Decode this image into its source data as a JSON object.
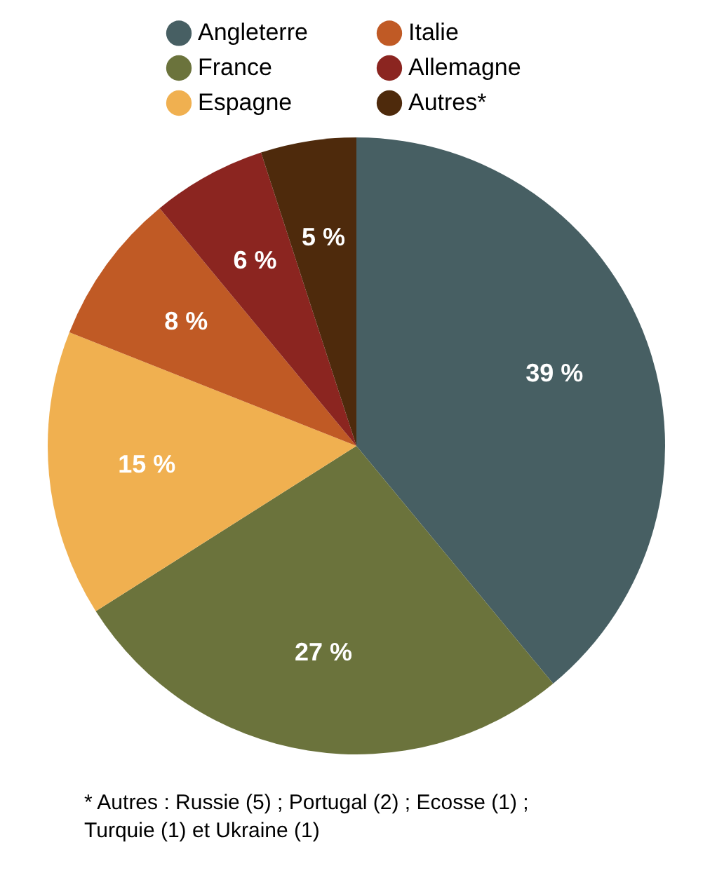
{
  "chart_data": {
    "type": "pie",
    "categories": [
      "Angleterre",
      "France",
      "Espagne",
      "Italie",
      "Allemagne",
      "Autres*"
    ],
    "values": [
      39,
      27,
      15,
      8,
      6,
      5
    ],
    "colors": [
      "#475f63",
      "#6b733c",
      "#f0b050",
      "#c05a25",
      "#8b2520",
      "#4e2a0c"
    ],
    "value_labels": [
      "39 %",
      "27 %",
      "15 %",
      "8 %",
      "6 %",
      "5 %"
    ],
    "legend": "top",
    "annotations": [
      "* Autres : Russie (5) ; Portugal (2) ; Ecosse (1) ;\nTurquie (1) et Ukraine (1)"
    ]
  }
}
